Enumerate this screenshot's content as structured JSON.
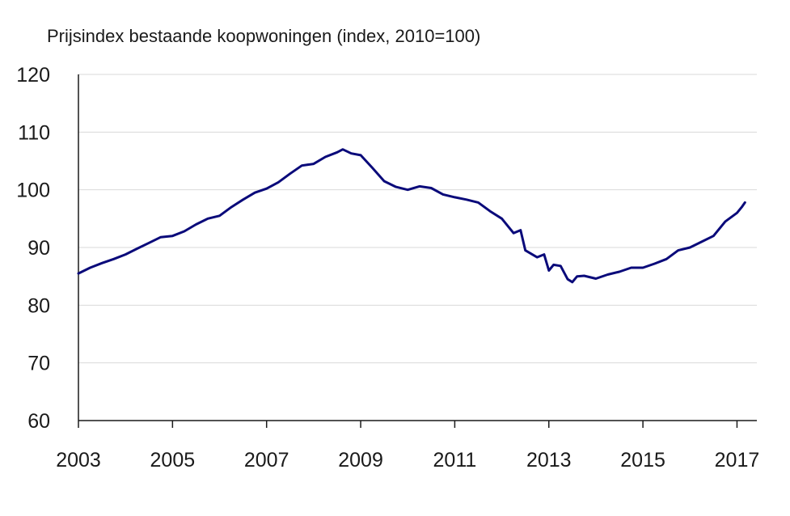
{
  "chart_data": {
    "type": "line",
    "title": "Prijsindex bestaande koopwoningen (index, 2010=100)",
    "xlabel": "",
    "ylabel": "",
    "xlim": [
      2003,
      2017.25
    ],
    "ylim": [
      60,
      120
    ],
    "x_ticks": [
      2003,
      2005,
      2007,
      2009,
      2011,
      2013,
      2015,
      2017
    ],
    "y_ticks": [
      60,
      70,
      80,
      90,
      100,
      110,
      120
    ],
    "grid": "horizontal",
    "line_color": "#0a0a7a",
    "series": [
      {
        "points": [
          [
            2003.0,
            85.5
          ],
          [
            2003.25,
            86.5
          ],
          [
            2003.5,
            87.3
          ],
          [
            2003.75,
            88.0
          ],
          [
            2004.0,
            88.8
          ],
          [
            2004.25,
            89.8
          ],
          [
            2004.5,
            90.8
          ],
          [
            2004.75,
            91.8
          ],
          [
            2005.0,
            92.0
          ],
          [
            2005.25,
            92.8
          ],
          [
            2005.5,
            94.0
          ],
          [
            2005.75,
            95.0
          ],
          [
            2006.0,
            95.5
          ],
          [
            2006.25,
            97.0
          ],
          [
            2006.5,
            98.3
          ],
          [
            2006.75,
            99.5
          ],
          [
            2007.0,
            100.2
          ],
          [
            2007.25,
            101.3
          ],
          [
            2007.5,
            102.8
          ],
          [
            2007.75,
            104.2
          ],
          [
            2008.0,
            104.5
          ],
          [
            2008.25,
            105.7
          ],
          [
            2008.5,
            106.5
          ],
          [
            2008.62,
            107.0
          ],
          [
            2008.8,
            106.3
          ],
          [
            2009.0,
            106.0
          ],
          [
            2009.25,
            103.8
          ],
          [
            2009.5,
            101.5
          ],
          [
            2009.75,
            100.5
          ],
          [
            2010.0,
            100.0
          ],
          [
            2010.25,
            100.6
          ],
          [
            2010.5,
            100.3
          ],
          [
            2010.75,
            99.2
          ],
          [
            2011.0,
            98.7
          ],
          [
            2011.25,
            98.3
          ],
          [
            2011.5,
            97.8
          ],
          [
            2011.75,
            96.3
          ],
          [
            2012.0,
            95.0
          ],
          [
            2012.25,
            92.5
          ],
          [
            2012.4,
            93.0
          ],
          [
            2012.5,
            89.5
          ],
          [
            2012.75,
            88.3
          ],
          [
            2012.9,
            88.8
          ],
          [
            2013.0,
            86.0
          ],
          [
            2013.1,
            87.0
          ],
          [
            2013.25,
            86.8
          ],
          [
            2013.4,
            84.5
          ],
          [
            2013.5,
            84.0
          ],
          [
            2013.6,
            85.0
          ],
          [
            2013.75,
            85.1
          ],
          [
            2014.0,
            84.6
          ],
          [
            2014.25,
            85.3
          ],
          [
            2014.5,
            85.8
          ],
          [
            2014.75,
            86.5
          ],
          [
            2015.0,
            86.5
          ],
          [
            2015.25,
            87.2
          ],
          [
            2015.5,
            88.0
          ],
          [
            2015.75,
            89.5
          ],
          [
            2016.0,
            90.0
          ],
          [
            2016.25,
            91.0
          ],
          [
            2016.5,
            92.0
          ],
          [
            2016.75,
            94.5
          ],
          [
            2017.0,
            96.0
          ],
          [
            2017.1,
            97.0
          ],
          [
            2017.17,
            97.8
          ]
        ]
      }
    ]
  }
}
